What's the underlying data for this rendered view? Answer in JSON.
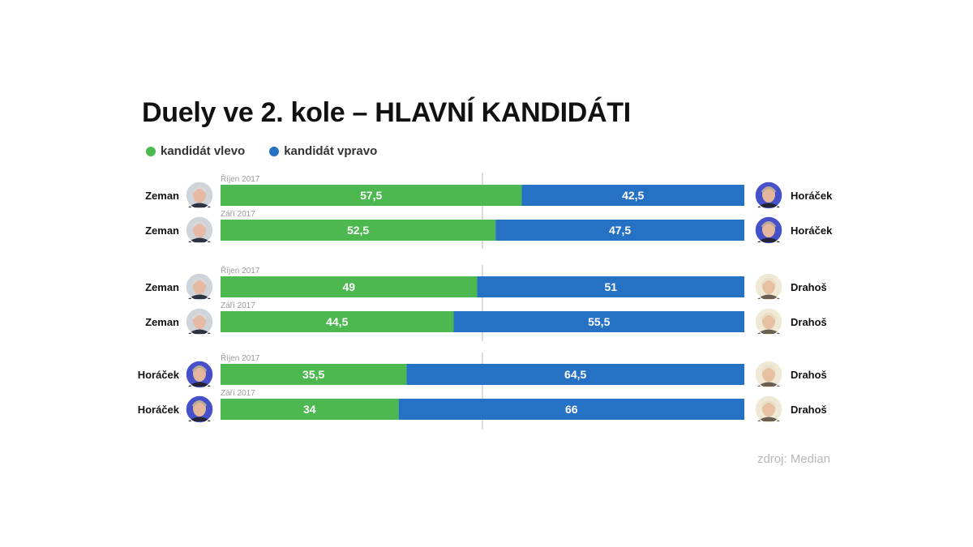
{
  "title": "Duely ve 2. kole – HLAVNÍ KANDIDÁTI",
  "legend": {
    "left": {
      "label": "kandidát vlevo",
      "color": "#4cb84f"
    },
    "right": {
      "label": "kandidát vpravo",
      "color": "#2571c4"
    }
  },
  "source": "zdroj: Median",
  "chart_data": {
    "type": "bar",
    "stacked": true,
    "orientation": "horizontal",
    "midline": 50,
    "xlim": [
      0,
      100
    ],
    "series": [
      {
        "name": "kandidát vlevo",
        "color": "#4cb84f"
      },
      {
        "name": "kandidát vpravo",
        "color": "#2571c4"
      }
    ],
    "groups": [
      {
        "rows": [
          {
            "period": "Říjen 2017",
            "left_name": "Zeman",
            "right_name": "Horáček",
            "left_value": "57,5",
            "right_value": "42,5"
          },
          {
            "period": "Září 2017",
            "left_name": "Zeman",
            "right_name": "Horáček",
            "left_value": "52,5",
            "right_value": "47,5"
          }
        ]
      },
      {
        "rows": [
          {
            "period": "Říjen 2017",
            "left_name": "Zeman",
            "right_name": "Drahoš",
            "left_value": "49",
            "right_value": "51"
          },
          {
            "period": "Září 2017",
            "left_name": "Zeman",
            "right_name": "Drahoš",
            "left_value": "44,5",
            "right_value": "55,5"
          }
        ]
      },
      {
        "rows": [
          {
            "period": "Říjen 2017",
            "left_name": "Horáček",
            "right_name": "Drahoš",
            "left_value": "35,5",
            "right_value": "64,5"
          },
          {
            "period": "Září 2017",
            "left_name": "Horáček",
            "right_name": "Drahoš",
            "left_value": "34",
            "right_value": "66"
          }
        ]
      }
    ]
  }
}
